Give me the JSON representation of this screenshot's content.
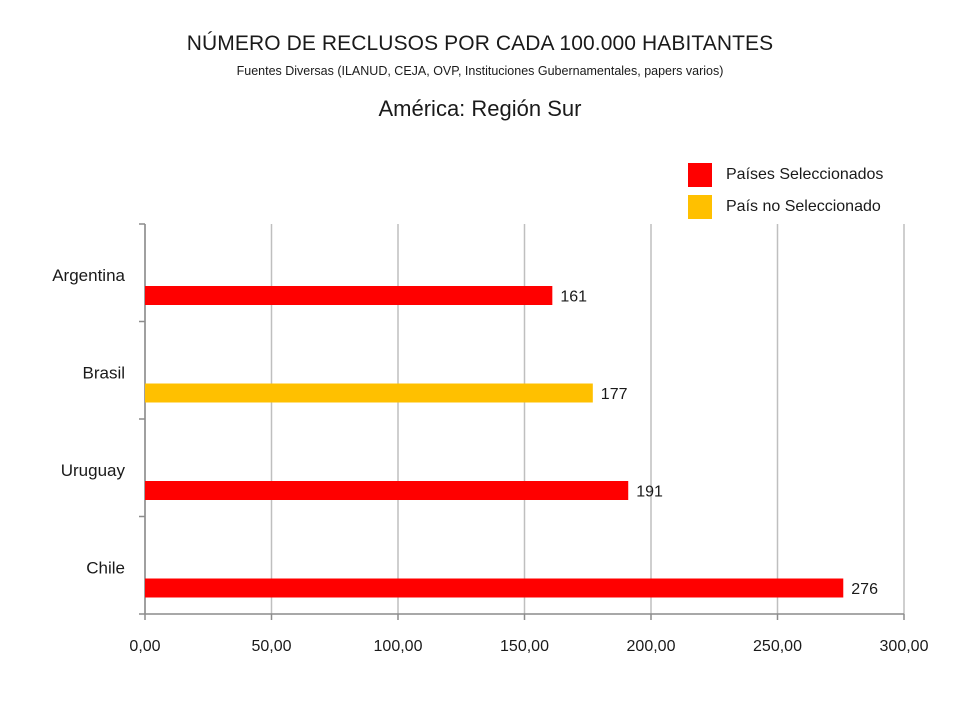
{
  "header": {
    "title": "NÚMERO DE RECLUSOS POR CADA 100.000 HABITANTES",
    "source": "Fuentes Diversas (ILANUD, CEJA, OVP, Instituciones Gubernamentales, papers varios)",
    "subtitle": "América: Región Sur"
  },
  "legend": [
    {
      "label": "Países Seleccionados",
      "color": "#ff0000"
    },
    {
      "label": "País no Seleccionado",
      "color": "#ffc000"
    }
  ],
  "chart_data": {
    "type": "bar",
    "orientation": "horizontal",
    "title": "NÚMERO DE RECLUSOS POR CADA 100.000 HABITANTES",
    "subtitle": "América: Región Sur",
    "categories": [
      "Argentina",
      "Brasil",
      "Uruguay",
      "Chile"
    ],
    "values": [
      161,
      177,
      191,
      276
    ],
    "data_labels": [
      "161",
      "177",
      "191",
      "276"
    ],
    "bar_colors": [
      "#ff0000",
      "#ffc000",
      "#ff0000",
      "#ff0000"
    ],
    "xlim": [
      0,
      300
    ],
    "x_ticks": [
      0,
      50,
      100,
      150,
      200,
      250,
      300
    ],
    "x_tick_labels": [
      "0,00",
      "50,00",
      "100,00",
      "150,00",
      "200,00",
      "250,00",
      "300,00"
    ],
    "xlabel": "",
    "ylabel": "",
    "grid": true,
    "legend_position": "top-right"
  }
}
